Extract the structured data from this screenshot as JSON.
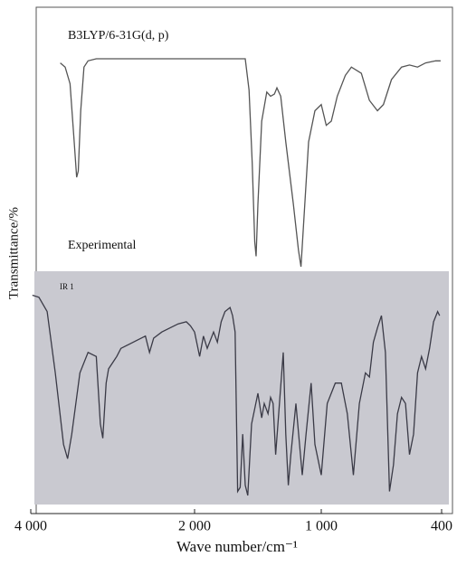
{
  "chart_data": {
    "type": "line",
    "xlabel": "Wave number/cm⁻¹",
    "ylabel": "Transmittance/%",
    "xlim": [
      4000,
      400
    ],
    "xticks": [
      {
        "value": 4000,
        "label": "4 000"
      },
      {
        "value": 2000,
        "label": "2 000"
      },
      {
        "value": 1000,
        "label": "1 000"
      },
      400
    ],
    "ylim": [
      0,
      100
    ],
    "annotations": [
      "IR 1"
    ],
    "series": [
      {
        "name": "B3LYP/6-31G(d, p)",
        "color": "#555555",
        "x": [
          3640,
          3580,
          3520,
          3470,
          3440,
          3420,
          3390,
          3350,
          3300,
          3200,
          1600,
          1570,
          1545,
          1525,
          1514,
          1500,
          1470,
          1430,
          1400,
          1370,
          1350,
          1320,
          1280,
          1220,
          1180,
          1160,
          1140,
          1100,
          1050,
          1000,
          975,
          950,
          920,
          880,
          850,
          800,
          760,
          720,
          690,
          650,
          600,
          560,
          520,
          480,
          430,
          405
        ],
        "values": [
          98,
          96,
          88,
          60,
          43,
          46,
          75,
          96,
          99,
          100,
          100,
          85,
          50,
          12,
          5,
          30,
          70,
          84,
          82,
          83,
          86,
          82,
          60,
          30,
          8,
          0,
          20,
          60,
          75,
          78,
          68,
          70,
          82,
          92,
          96,
          93,
          80,
          75,
          78,
          90,
          96,
          97,
          96,
          98,
          99,
          99
        ]
      },
      {
        "name": "Experimental",
        "color": "#3a3a46",
        "x": [
          3980,
          3900,
          3800,
          3700,
          3600,
          3550,
          3500,
          3400,
          3300,
          3200,
          3150,
          3120,
          3080,
          3050,
          3000,
          2950,
          2900,
          2800,
          2700,
          2600,
          2550,
          2500,
          2400,
          2300,
          2200,
          2100,
          2050,
          2000,
          1960,
          1930,
          1900,
          1850,
          1820,
          1790,
          1760,
          1720,
          1700,
          1680,
          1660,
          1640,
          1620,
          1600,
          1580,
          1550,
          1500,
          1470,
          1450,
          1420,
          1400,
          1380,
          1360,
          1330,
          1300,
          1280,
          1260,
          1240,
          1200,
          1150,
          1120,
          1080,
          1050,
          1000,
          970,
          930,
          900,
          870,
          840,
          810,
          780,
          760,
          740,
          720,
          700,
          680,
          660,
          640,
          620,
          600,
          580,
          560,
          540,
          520,
          500,
          480,
          460,
          440,
          420,
          410
        ],
        "values": [
          98,
          97,
          90,
          60,
          25,
          18,
          30,
          60,
          70,
          68,
          35,
          28,
          55,
          62,
          65,
          68,
          72,
          74,
          76,
          78,
          70,
          77,
          80,
          82,
          84,
          85,
          83,
          80,
          68,
          78,
          72,
          80,
          75,
          85,
          90,
          92,
          88,
          80,
          2,
          4,
          30,
          5,
          0,
          35,
          50,
          38,
          45,
          40,
          48,
          45,
          20,
          45,
          70,
          30,
          5,
          20,
          45,
          10,
          30,
          55,
          25,
          10,
          45,
          55,
          55,
          40,
          10,
          45,
          60,
          58,
          75,
          82,
          88,
          70,
          2,
          15,
          40,
          48,
          45,
          20,
          30,
          60,
          68,
          62,
          72,
          85,
          90,
          88
        ]
      }
    ]
  }
}
